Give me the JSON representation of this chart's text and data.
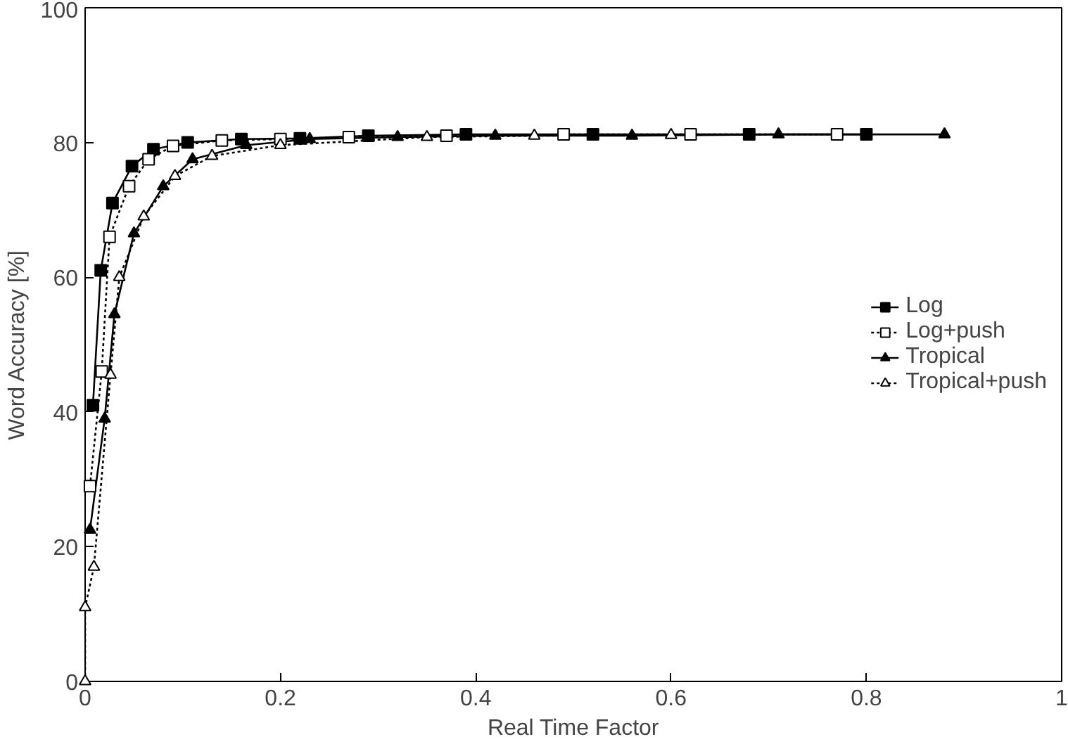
{
  "chart_data": {
    "type": "line",
    "xlabel": "Real Time Factor",
    "ylabel": "Word Accuracy [%]",
    "xlim": [
      0,
      1
    ],
    "ylim": [
      0,
      100
    ],
    "xticks": [
      0,
      0.2,
      0.4,
      0.6,
      0.8,
      1
    ],
    "yticks": [
      0,
      20,
      40,
      60,
      80,
      100
    ],
    "grid": false,
    "legend": "right",
    "series": [
      {
        "name": "Log",
        "color": "#000000",
        "marker": "square",
        "line_style": "solid",
        "x": [
          0.008,
          0.016,
          0.028,
          0.048,
          0.07,
          0.105,
          0.16,
          0.22,
          0.29,
          0.39,
          0.52,
          0.68,
          0.8
        ],
        "values": [
          41,
          61,
          71,
          76.5,
          79,
          80,
          80.5,
          80.6,
          81,
          81.2,
          81.2,
          81.2,
          81.2
        ]
      },
      {
        "name": "Log+push",
        "color": "#000000",
        "marker": "square",
        "line_style": "dotted",
        "x": [
          0.005,
          0.017,
          0.025,
          0.045,
          0.065,
          0.09,
          0.14,
          0.2,
          0.27,
          0.37,
          0.49,
          0.62,
          0.77
        ],
        "values": [
          29,
          46,
          66,
          73.5,
          77.5,
          79.5,
          80.3,
          80.5,
          80.8,
          81,
          81.2,
          81.2,
          81.2
        ]
      },
      {
        "name": "Tropical",
        "color": "#000000",
        "marker": "triangle",
        "line_style": "solid",
        "x": [
          0.005,
          0.02,
          0.03,
          0.05,
          0.08,
          0.11,
          0.165,
          0.23,
          0.32,
          0.42,
          0.56,
          0.71,
          0.88
        ],
        "values": [
          22.5,
          39,
          54.5,
          66.5,
          73.5,
          77.5,
          79.6,
          80.5,
          80.8,
          81,
          81,
          81.2,
          81.2
        ]
      },
      {
        "name": "Tropical+push",
        "color": "#000000",
        "marker": "triangle",
        "line_style": "dotted",
        "x": [
          0.0,
          0.0,
          0.009,
          0.026,
          0.035,
          0.06,
          0.092,
          0.13,
          0.2,
          0.35,
          0.46,
          0.6
        ],
        "values": [
          0,
          11,
          17,
          45.5,
          60,
          69,
          75,
          78,
          79.6,
          80.8,
          81,
          81.1
        ]
      }
    ]
  }
}
